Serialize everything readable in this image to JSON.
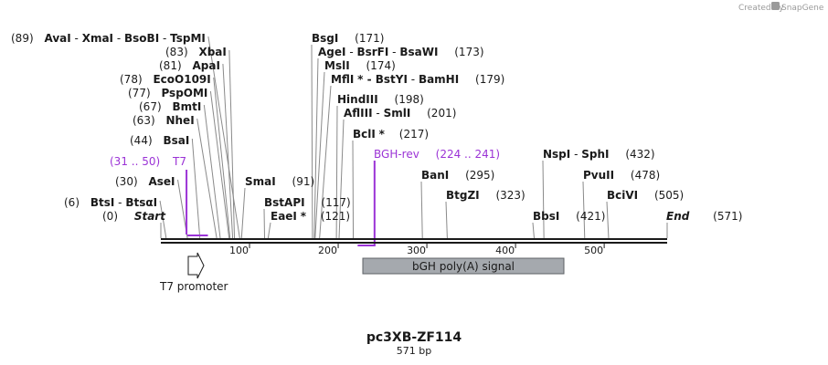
{
  "credit": {
    "prefix": "Created by",
    "brand": "SnapGene"
  },
  "plasmid": {
    "name": "pc3XB-ZF114",
    "length_label": "571 bp",
    "length_bp": 571
  },
  "scale_ticks": [
    "100",
    "200",
    "300",
    "400",
    "500"
  ],
  "sites": [
    {
      "id": "start",
      "parts": [
        {
          "t": "Start",
          "s": "bi"
        }
      ],
      "pos": "(0)",
      "bp": 0
    },
    {
      "id": "btsi",
      "parts": [
        {
          "t": "BtsI",
          "s": "b"
        },
        {
          "t": " - ",
          "s": ""
        },
        {
          "t": "BtsαI",
          "s": "b"
        }
      ],
      "pos": "(6)",
      "bp": 6
    },
    {
      "id": "asei",
      "parts": [
        {
          "t": "AseI",
          "s": "b"
        }
      ],
      "pos": "(30)",
      "bp": 30
    },
    {
      "id": "bsai",
      "parts": [
        {
          "t": "BsaI",
          "s": "b"
        }
      ],
      "pos": "(44)",
      "bp": 44
    },
    {
      "id": "nhei",
      "parts": [
        {
          "t": "NheI",
          "s": "b"
        }
      ],
      "pos": "(63)",
      "bp": 63
    },
    {
      "id": "bmti",
      "parts": [
        {
          "t": "BmtI",
          "s": "b"
        }
      ],
      "pos": "(67)",
      "bp": 67
    },
    {
      "id": "pspomi",
      "parts": [
        {
          "t": "PspOMI",
          "s": "b"
        }
      ],
      "pos": "(77)",
      "bp": 77
    },
    {
      "id": "ecoo109i",
      "parts": [
        {
          "t": "EcoO109I",
          "s": "b"
        }
      ],
      "pos": "(78)",
      "bp": 78
    },
    {
      "id": "apai",
      "parts": [
        {
          "t": "ApaI",
          "s": "b"
        }
      ],
      "pos": "(81)",
      "bp": 81
    },
    {
      "id": "xbai",
      "parts": [
        {
          "t": "XbaI",
          "s": "b"
        }
      ],
      "pos": "(83)",
      "bp": 83
    },
    {
      "id": "avai",
      "parts": [
        {
          "t": "AvaI",
          "s": "b"
        },
        {
          "t": " - ",
          "s": ""
        },
        {
          "t": "XmaI",
          "s": "b"
        },
        {
          "t": " - ",
          "s": ""
        },
        {
          "t": "BsoBI",
          "s": "b"
        },
        {
          "t": " - ",
          "s": ""
        },
        {
          "t": "TspMI",
          "s": "b"
        }
      ],
      "pos": "(89)",
      "bp": 89
    },
    {
      "id": "smai",
      "parts": [
        {
          "t": "SmaI",
          "s": "b"
        }
      ],
      "pos": "(91)",
      "bp": 91
    },
    {
      "id": "bstapi",
      "parts": [
        {
          "t": "BstAPI",
          "s": "b"
        }
      ],
      "pos": "(117)",
      "bp": 117
    },
    {
      "id": "eaei",
      "parts": [
        {
          "t": "EaeI",
          "s": "b"
        },
        {
          "t": " *",
          "s": "b"
        }
      ],
      "pos": "(121)",
      "bp": 121
    },
    {
      "id": "bsgi",
      "parts": [
        {
          "t": "BsgI",
          "s": "b"
        }
      ],
      "pos": "(171)",
      "bp": 171
    },
    {
      "id": "agei",
      "parts": [
        {
          "t": "AgeI",
          "s": "b"
        },
        {
          "t": " - ",
          "s": ""
        },
        {
          "t": "BsrFI",
          "s": "b"
        },
        {
          "t": " - ",
          "s": ""
        },
        {
          "t": "BsaWI",
          "s": "b"
        }
      ],
      "pos": "(173)",
      "bp": 173
    },
    {
      "id": "msli",
      "parts": [
        {
          "t": "MslI",
          "s": "b"
        }
      ],
      "pos": "(174)",
      "bp": 174
    },
    {
      "id": "mfli",
      "parts": [
        {
          "t": "MflI",
          "s": "b"
        },
        {
          "t": " * - ",
          "s": "b"
        },
        {
          "t": "BstYI",
          "s": "b"
        },
        {
          "t": " - ",
          "s": ""
        },
        {
          "t": "BamHI",
          "s": "b"
        }
      ],
      "pos": "(179)",
      "bp": 179
    },
    {
      "id": "hindiii",
      "parts": [
        {
          "t": "HindIII",
          "s": "b"
        }
      ],
      "pos": "(198)",
      "bp": 198
    },
    {
      "id": "aflii",
      "parts": [
        {
          "t": "AflIII",
          "s": "b"
        },
        {
          "t": " - ",
          "s": ""
        },
        {
          "t": "SmlI",
          "s": "b"
        }
      ],
      "pos": "(201)",
      "bp": 201
    },
    {
      "id": "bcli",
      "parts": [
        {
          "t": "BclI",
          "s": "b"
        },
        {
          "t": " *",
          "s": "b"
        }
      ],
      "pos": "(217)",
      "bp": 217
    },
    {
      "id": "bani",
      "parts": [
        {
          "t": "BanI",
          "s": "b"
        }
      ],
      "pos": "(295)",
      "bp": 295
    },
    {
      "id": "btgzi",
      "parts": [
        {
          "t": "BtgZI",
          "s": "b"
        }
      ],
      "pos": "(323)",
      "bp": 323
    },
    {
      "id": "bbsi",
      "parts": [
        {
          "t": "BbsI",
          "s": "b"
        }
      ],
      "pos": "(421)",
      "bp": 421
    },
    {
      "id": "nspi",
      "parts": [
        {
          "t": "NspI",
          "s": "b"
        },
        {
          "t": " - ",
          "s": ""
        },
        {
          "t": "SphI",
          "s": "b"
        }
      ],
      "pos": "(432)",
      "bp": 432
    },
    {
      "id": "pvuii",
      "parts": [
        {
          "t": "PvuII",
          "s": "b"
        }
      ],
      "pos": "(478)",
      "bp": 478
    },
    {
      "id": "bcivi",
      "parts": [
        {
          "t": "BciVI",
          "s": "b"
        }
      ],
      "pos": "(505)",
      "bp": 505
    },
    {
      "id": "end",
      "parts": [
        {
          "t": "End",
          "s": "bi"
        }
      ],
      "pos": "(571)",
      "bp": 571
    }
  ],
  "primers": [
    {
      "id": "t7",
      "name": "T7",
      "range": "(31 .. 50)",
      "start_bp": 31,
      "end_bp": 50,
      "color": "#9b33d6"
    },
    {
      "id": "bgh-rev",
      "name": "BGH-rev",
      "range": "(224 .. 241)",
      "start_bp": 224,
      "end_bp": 241,
      "color": "#9b33d6"
    }
  ],
  "features": [
    {
      "id": "t7-promoter",
      "name": "T7 promoter",
      "type": "promoter"
    },
    {
      "id": "bgh-polya",
      "name": "bGH poly(A) signal",
      "type": "terminator",
      "fill": "#a5a9ae"
    }
  ]
}
